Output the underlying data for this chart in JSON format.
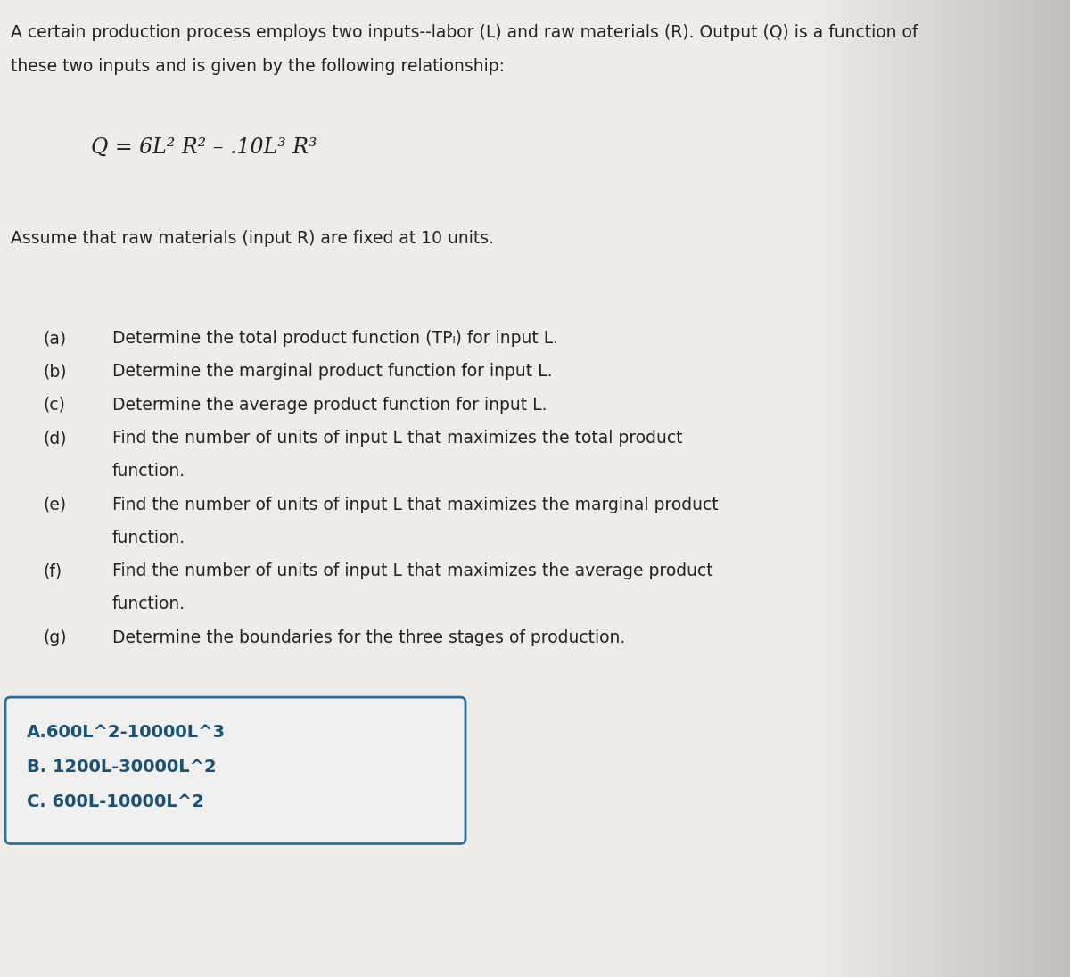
{
  "background_color": "#f0ede8",
  "right_bg_color": "#c8c4be",
  "title_line1": "A certain production process employs two inputs--labor (L) and raw materials (R). Output (Q) is a function of",
  "title_line2": "these two inputs and is given by the following relationship:",
  "formula_parts": [
    {
      "text": "Q = 6L",
      "style": "normal"
    },
    {
      "text": "2",
      "style": "super"
    },
    {
      "text": " R",
      "style": "normal"
    },
    {
      "text": "2",
      "style": "super"
    },
    {
      "text": " – .10L",
      "style": "normal"
    },
    {
      "text": "3",
      "style": "super"
    },
    {
      "text": " R",
      "style": "normal"
    },
    {
      "text": "3",
      "style": "super"
    }
  ],
  "assume_text": "Assume that raw materials (input R) are fixed at 10 units.",
  "items": [
    {
      "label": "(a)",
      "lines": [
        "Determine the total product function (TPₗ) for input L."
      ]
    },
    {
      "label": "(b)",
      "lines": [
        "Determine the marginal product function for input L."
      ]
    },
    {
      "label": "(c)",
      "lines": [
        "Determine the average product function for input L."
      ]
    },
    {
      "label": "(d)",
      "lines": [
        "Find the number of units of input L that maximizes the total product",
        "function."
      ]
    },
    {
      "label": "(e)",
      "lines": [
        "Find the number of units of input L that maximizes the marginal product",
        "function."
      ]
    },
    {
      "label": "(f)",
      "lines": [
        "Find the number of units of input L that maximizes the average product",
        "function."
      ]
    },
    {
      "label": "(g)",
      "lines": [
        "Determine the boundaries for the three stages of production."
      ]
    }
  ],
  "box_lines": [
    "A.600L^2-10000L^3",
    "B. 1200L-30000L^2",
    "C. 600L-10000L^2"
  ],
  "box_text_color": "#1a5276",
  "box_border_color": "#2471a3",
  "box_bg_color": "#f0f0f0",
  "text_color": "#222222",
  "font_size_title": 13.5,
  "font_size_formula": 17,
  "font_size_body": 13.5,
  "font_size_box": 14
}
